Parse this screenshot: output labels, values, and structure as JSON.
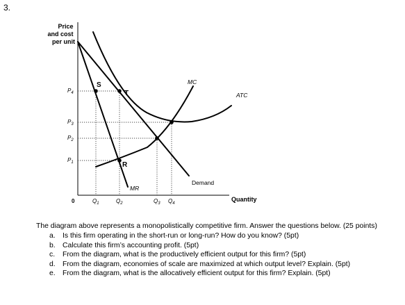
{
  "question_number": "3.",
  "diagram": {
    "y_axis_label": [
      "Price",
      "and cost",
      "per unit"
    ],
    "x_axis_label": "Quantity",
    "origin_label": "0",
    "price_labels": [
      {
        "main": "P",
        "sub": "4"
      },
      {
        "main": "P",
        "sub": "3"
      },
      {
        "main": "P",
        "sub": "2"
      },
      {
        "main": "P",
        "sub": "1"
      }
    ],
    "quantity_labels": [
      {
        "main": "Q",
        "sub": "1"
      },
      {
        "main": "Q",
        "sub": "2"
      },
      {
        "main": "Q",
        "sub": "3"
      },
      {
        "main": "Q",
        "sub": "4"
      }
    ],
    "point_labels": {
      "s": "S",
      "t": "T",
      "r": "R"
    },
    "curve_labels": {
      "mc": "MC",
      "atc": "ATC",
      "demand": "Demand",
      "mr": "MR"
    }
  },
  "intro": "The diagram above represents a monopolistically competitive firm. Answer the questions below. (25 points)",
  "questions": [
    {
      "letter": "a.",
      "text": "Is this firm operating in the short-run or long-run? How do you know? (5pt)"
    },
    {
      "letter": "b.",
      "text": "Calculate this firm’s accounting profit. (5pt)"
    },
    {
      "letter": "c.",
      "text": "From the diagram, what is the productively efficient output for this firm? (5pt)"
    },
    {
      "letter": "d.",
      "text": "From the diagram, economies of scale are maximized at which output level? Explain. (5pt)"
    },
    {
      "letter": "e.",
      "text": "From the diagram, what is the allocatively efficient output for this firm? Explain. (5pt)"
    }
  ],
  "colors": {
    "ink": "#000000",
    "guide": "#444444",
    "background": "#ffffff"
  }
}
